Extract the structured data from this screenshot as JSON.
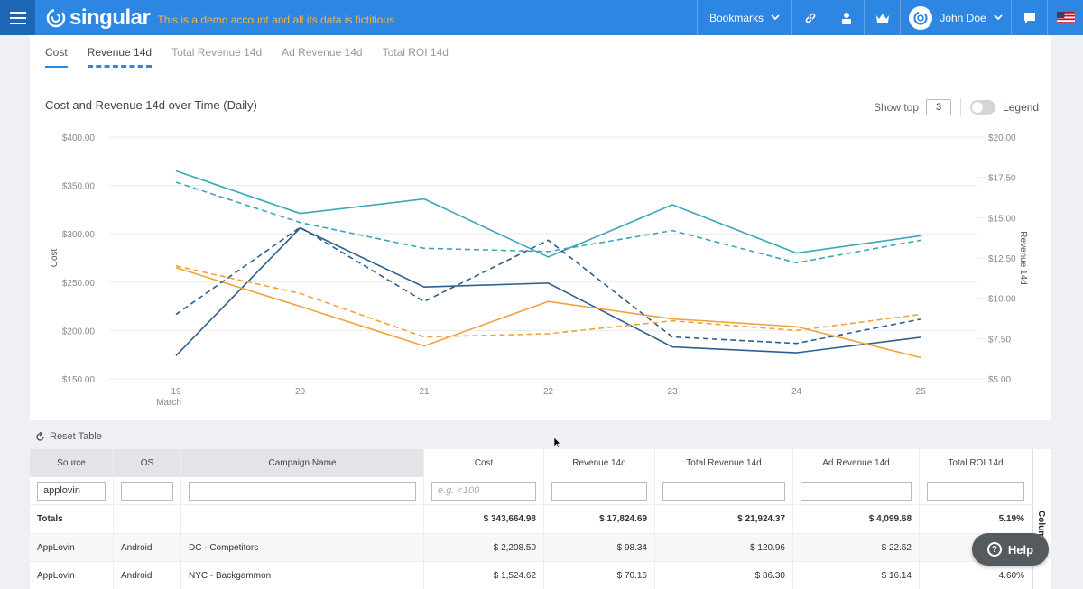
{
  "header": {
    "brand": "singular",
    "demo_message": "This is a demo account and all its data is fictitious",
    "bookmarks_label": "Bookmarks",
    "user_name": "John Doe"
  },
  "tabs": [
    {
      "label": "Cost"
    },
    {
      "label": "Revenue 14d"
    },
    {
      "label": "Total Revenue 14d"
    },
    {
      "label": "Ad Revenue 14d"
    },
    {
      "label": "Total ROI 14d"
    }
  ],
  "chart": {
    "title": "Cost and Revenue 14d over Time (Daily)",
    "show_top_label": "Show top",
    "show_top_value": "3",
    "legend_label": "Legend"
  },
  "chart_data": {
    "type": "line",
    "title": "Cost and Revenue 14d over Time (Daily)",
    "x": [
      "19",
      "20",
      "21",
      "22",
      "23",
      "24",
      "25"
    ],
    "x_sublabel": "March",
    "ylabel": "Cost",
    "y2label": "Revenue 14d",
    "ylim": [
      150,
      400
    ],
    "y2lim": [
      5,
      20
    ],
    "y_ticks": [
      "$150.00",
      "$200.00",
      "$250.00",
      "$300.00",
      "$350.00",
      "$400.00"
    ],
    "y2_ticks": [
      "$5.00",
      "$7.50",
      "$10.00",
      "$12.50",
      "$15.00",
      "$17.50",
      "$20.00"
    ],
    "grid": true,
    "series": [
      {
        "axis": "left",
        "style": "solid",
        "color": "#3aa6b9",
        "values": [
          365,
          321,
          336,
          276,
          330,
          280,
          298
        ]
      },
      {
        "axis": "left",
        "style": "solid",
        "color": "#2d5f8e",
        "values": [
          174,
          306,
          245,
          249,
          183,
          177,
          193
        ]
      },
      {
        "axis": "left",
        "style": "solid",
        "color": "#eea43a",
        "values": [
          265,
          225,
          184,
          230,
          212,
          204,
          172
        ]
      },
      {
        "axis": "right",
        "style": "dashed",
        "color": "#3aa6b9",
        "values": [
          17.2,
          14.7,
          13.1,
          12.9,
          14.2,
          12.2,
          13.6
        ]
      },
      {
        "axis": "right",
        "style": "dashed",
        "color": "#2d5f8e",
        "values": [
          9.0,
          14.4,
          9.8,
          13.6,
          7.6,
          7.2,
          8.7
        ]
      },
      {
        "axis": "right",
        "style": "dashed",
        "color": "#eea43a",
        "values": [
          12.0,
          10.3,
          7.6,
          7.8,
          8.6,
          8.0,
          9.0
        ]
      }
    ]
  },
  "table": {
    "reset_label": "Reset Table",
    "columns": [
      "Source",
      "OS",
      "Campaign Name",
      "Cost",
      "Revenue 14d",
      "Total Revenue 14d",
      "Ad Revenue 14d",
      "Total ROI 14d"
    ],
    "filters": {
      "source_value": "applovin",
      "cost_placeholder": "e.g. <100"
    },
    "totals": {
      "label": "Totals",
      "cost": "$ 343,664.98",
      "revenue": "$ 17,824.69",
      "total_revenue": "$ 21,924.37",
      "ad_revenue": "$ 4,099.68",
      "roi": "5.19%"
    },
    "rows": [
      {
        "source": "AppLovin",
        "os": "Android",
        "campaign": "DC - Competitors",
        "cost": "$ 2,208.50",
        "revenue": "$ 98.34",
        "total_revenue": "$ 120.96",
        "ad_revenue": "$ 22.62",
        "roi": ""
      },
      {
        "source": "AppLovin",
        "os": "Android",
        "campaign": "NYC - Backgammon",
        "cost": "$ 1,524.62",
        "revenue": "$ 70.16",
        "total_revenue": "$ 86.30",
        "ad_revenue": "$ 16.14",
        "roi": "4.60%"
      }
    ],
    "columns_side_label": "Colum"
  },
  "help_label": "Help"
}
